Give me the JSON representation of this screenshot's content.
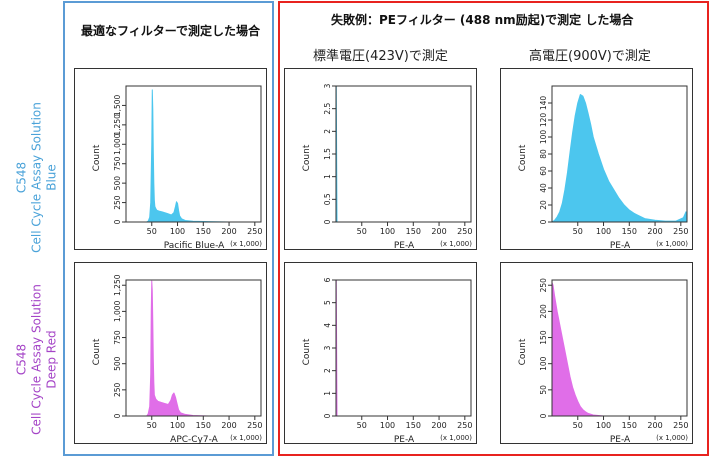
{
  "headers": {
    "optimal": "最適なフィルターで測定した場合",
    "failure": "失敗例：PEフィルター (488 nm励起)で測定 した場合",
    "standard_voltage": "標準電圧(423V)で測定",
    "high_voltage": "高電圧(900V)で測定"
  },
  "rows": [
    {
      "product": "C548",
      "line1": "Cell Cycle Assay Solution",
      "line2": "Blue",
      "color": "#4ba3d9"
    },
    {
      "product": "C548",
      "line1": "Cell Cycle Assay Solution",
      "line2": "Deep Red",
      "color": "#a545c7"
    }
  ],
  "colors": {
    "blue_fill": "#4cc6ee",
    "magenta_fill": "#e06ee8"
  },
  "chart_data": [
    {
      "type": "area",
      "name": "blue-optimal",
      "xlabel": "Pacific Blue-A",
      "xunit": "(x 1,000)",
      "ylabel": "Count",
      "xlim": [
        0,
        262
      ],
      "xticks": [
        50,
        100,
        150,
        200,
        250
      ],
      "ylim": [
        0,
        1750
      ],
      "yticks": [
        0,
        250,
        500,
        750,
        1000,
        1250,
        1500
      ],
      "fill": "blue",
      "x": [
        40,
        43,
        46,
        48,
        50,
        51,
        52,
        53,
        54,
        55,
        56,
        58,
        60,
        64,
        70,
        80,
        88,
        93,
        96,
        98,
        100,
        102,
        104,
        108,
        115,
        130,
        160,
        200,
        262
      ],
      "y": [
        0,
        10,
        60,
        250,
        1000,
        1700,
        1450,
        900,
        500,
        280,
        200,
        170,
        150,
        140,
        130,
        110,
        90,
        120,
        200,
        260,
        240,
        150,
        80,
        40,
        20,
        10,
        5,
        0,
        0
      ]
    },
    {
      "type": "area",
      "name": "blue-pe-standard",
      "xlabel": "PE-A",
      "xunit": "(x 1,000)",
      "ylabel": "Count",
      "xlim": [
        0,
        262
      ],
      "xticks": [
        50,
        100,
        150,
        200,
        250
      ],
      "ylim": [
        0,
        3
      ],
      "yticks": [
        0,
        0.5,
        1,
        1.5,
        2,
        2.5,
        3
      ],
      "fill": "blue",
      "x": [
        0,
        0.5,
        2,
        262
      ],
      "y": [
        3,
        3,
        0,
        0
      ]
    },
    {
      "type": "area",
      "name": "blue-pe-high",
      "xlabel": "PE-A",
      "xunit": "(x 1,000)",
      "ylabel": "Count",
      "xlim": [
        0,
        262
      ],
      "xticks": [
        50,
        100,
        150,
        200,
        250
      ],
      "ylim": [
        0,
        160
      ],
      "yticks": [
        0,
        20,
        40,
        60,
        80,
        100,
        120,
        140
      ],
      "fill": "blue",
      "x": [
        0,
        5,
        10,
        15,
        20,
        25,
        30,
        35,
        40,
        45,
        50,
        55,
        60,
        65,
        70,
        75,
        80,
        90,
        100,
        110,
        120,
        130,
        140,
        150,
        160,
        170,
        180,
        200,
        220,
        240,
        255,
        260,
        262
      ],
      "y": [
        0,
        2,
        6,
        12,
        22,
        38,
        58,
        82,
        105,
        125,
        140,
        150,
        148,
        140,
        128,
        115,
        100,
        80,
        62,
        48,
        38,
        28,
        20,
        14,
        10,
        7,
        4,
        2,
        1,
        1,
        5,
        12,
        0
      ]
    },
    {
      "type": "area",
      "name": "deepred-optimal",
      "xlabel": "APC-Cy7-A",
      "xunit": "(x 1,000)",
      "ylabel": "Count",
      "xlim": [
        0,
        262
      ],
      "xticks": [
        50,
        100,
        150,
        200,
        250
      ],
      "ylim": [
        0,
        1300
      ],
      "yticks": [
        0,
        250,
        500,
        750,
        1000,
        1250
      ],
      "fill": "magenta",
      "x": [
        40,
        43,
        46,
        48,
        49,
        50,
        51,
        52,
        53,
        54,
        55,
        58,
        62,
        68,
        75,
        82,
        87,
        90,
        93,
        96,
        99,
        102,
        106,
        115,
        130,
        160,
        262
      ],
      "y": [
        0,
        20,
        90,
        400,
        1000,
        1290,
        1200,
        900,
        550,
        320,
        200,
        160,
        140,
        130,
        120,
        110,
        150,
        200,
        220,
        180,
        120,
        60,
        30,
        15,
        5,
        0,
        0
      ]
    },
    {
      "type": "area",
      "name": "deepred-pe-standard",
      "xlabel": "PE-A",
      "xunit": "(x 1,000)",
      "ylabel": "Count",
      "xlim": [
        0,
        262
      ],
      "xticks": [
        50,
        100,
        150,
        200,
        250
      ],
      "ylim": [
        0,
        6
      ],
      "yticks": [
        0,
        1,
        2,
        3,
        4,
        5,
        6
      ],
      "fill": "magenta",
      "x": [
        0,
        0.5,
        2,
        262
      ],
      "y": [
        6,
        6,
        0,
        0
      ]
    },
    {
      "type": "area",
      "name": "deepred-pe-high",
      "xlabel": "PE-A",
      "xunit": "(x 1,000)",
      "ylabel": "Count",
      "xlim": [
        0,
        262
      ],
      "xticks": [
        50,
        100,
        150,
        200,
        250
      ],
      "ylim": [
        0,
        260
      ],
      "yticks": [
        0,
        50,
        100,
        150,
        200,
        250
      ],
      "fill": "magenta",
      "x": [
        0,
        2,
        5,
        10,
        15,
        20,
        25,
        30,
        35,
        40,
        45,
        50,
        55,
        60,
        65,
        70,
        80,
        90,
        100,
        262
      ],
      "y": [
        255,
        250,
        230,
        200,
        175,
        150,
        125,
        100,
        75,
        55,
        40,
        28,
        18,
        12,
        8,
        5,
        2,
        1,
        0,
        0
      ]
    }
  ]
}
